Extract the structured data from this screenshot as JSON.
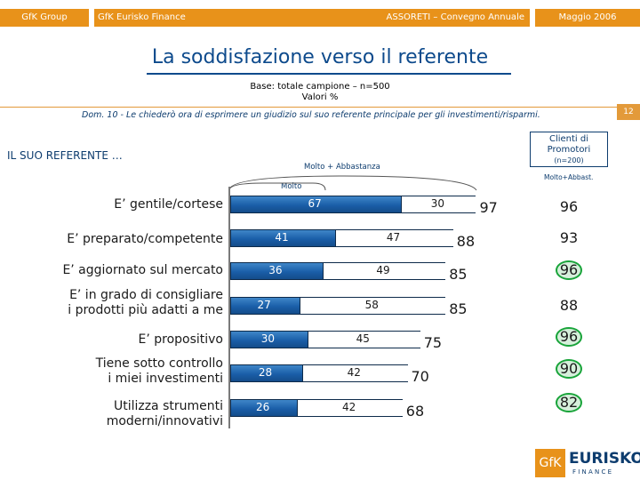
{
  "header": {
    "brand": "GfK Group",
    "company": "GfK Eurisko Finance",
    "event": "ASSORETI – Convegno Annuale",
    "date": "Maggio   2006",
    "page_number": "12"
  },
  "title": "La soddisfazione verso il referente",
  "base_line1": "Base: totale campione – n=500",
  "base_line2": "Valori %",
  "question": "Dom. 10 - Le chiederò ora di esprimere un giudizio sul suo referente principale per gli investimenti/risparmi.",
  "section_label": "IL SUO REFERENTE …",
  "legend_total": "Molto + Abbastanza",
  "legend_molto": "Molto",
  "clienti_box": {
    "title_line1": "Clienti di",
    "title_line2": "Promotori",
    "n": "(n=200)",
    "subheader": "Molto+Abbast."
  },
  "chart_data": {
    "type": "bar",
    "stacked": true,
    "categories": [
      "E’ gentile/cortese",
      "E’ preparato/competente",
      "E’ aggiornato sul mercato",
      "E’ in grado di consigliare i prodotti più adatti a me",
      "E’ propositivo",
      "Tiene sotto controllo i miei investimenti",
      "Utilizza strumenti moderni/innovativi"
    ],
    "series": [
      {
        "name": "Molto",
        "values": [
          67,
          41,
          36,
          27,
          30,
          28,
          26
        ]
      },
      {
        "name": "Abbastanza",
        "values": [
          30,
          47,
          49,
          58,
          45,
          42,
          42
        ]
      }
    ],
    "totals": [
      97,
      88,
      85,
      85,
      75,
      70,
      68
    ],
    "clienti_promotori": [
      96,
      93,
      96,
      88,
      96,
      90,
      82
    ],
    "clienti_highlighted": [
      false,
      false,
      true,
      false,
      true,
      true,
      true
    ],
    "xlim": [
      0,
      100
    ],
    "colors": {
      "molto": "#1a5ea8",
      "abbastanza": "#ffffff",
      "highlight": "#19a43a"
    }
  },
  "labels": {
    "row0": [
      "E’ gentile/cortese"
    ],
    "row1": [
      "E’ preparato/competente"
    ],
    "row2": [
      "E’ aggiornato sul mercato"
    ],
    "row3": [
      "E’ in grado di consigliare",
      "i prodotti più adatti a me"
    ],
    "row4": [
      "E’ propositivo"
    ],
    "row5": [
      "Tiene sotto controllo",
      "i miei investimenti"
    ],
    "row6": [
      "Utilizza strumenti",
      "moderni/innovativi"
    ]
  },
  "logo": {
    "gfk": "GfK",
    "eurisko": "EURISKO",
    "finance": "F I N A N C E"
  }
}
